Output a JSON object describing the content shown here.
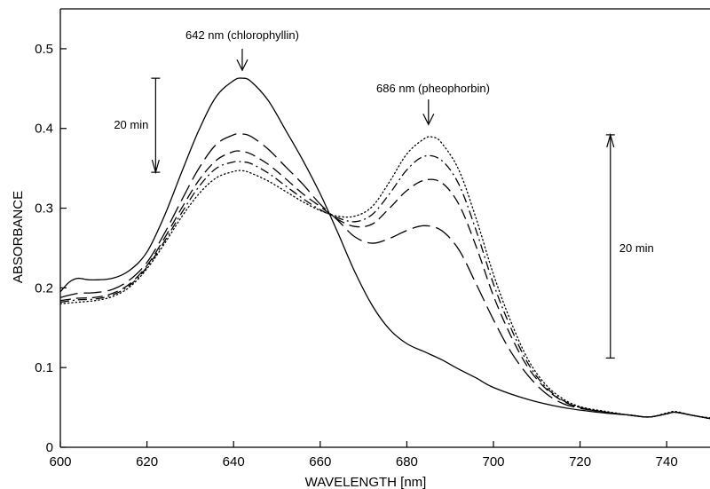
{
  "chart_data": {
    "type": "line",
    "title": "",
    "xlabel": "WAVELENGTH [nm]",
    "ylabel": "ABSORBANCE",
    "xlim": [
      600,
      750
    ],
    "ylim": [
      0,
      0.55
    ],
    "x_ticks": [
      600,
      620,
      640,
      660,
      680,
      700,
      720,
      740
    ],
    "x_tick_labels": [
      "600",
      "620",
      "640",
      "660",
      "680",
      "700",
      "720",
      "740"
    ],
    "y_ticks": [
      0,
      0.1,
      0.2,
      0.3,
      0.4,
      0.5
    ],
    "y_tick_labels": [
      "0",
      "0.1",
      "0.2",
      "0.3",
      "0.4",
      "0.5"
    ],
    "grid": false,
    "legend": "none",
    "series": [
      {
        "style": "solid",
        "points": [
          [
            600,
            0.195
          ],
          [
            602,
            0.207
          ],
          [
            604,
            0.212
          ],
          [
            607,
            0.21
          ],
          [
            612,
            0.212
          ],
          [
            616,
            0.222
          ],
          [
            620,
            0.245
          ],
          [
            624,
            0.29
          ],
          [
            628,
            0.345
          ],
          [
            632,
            0.398
          ],
          [
            636,
            0.44
          ],
          [
            640,
            0.46
          ],
          [
            642,
            0.463
          ],
          [
            644,
            0.459
          ],
          [
            648,
            0.435
          ],
          [
            652,
            0.398
          ],
          [
            656,
            0.36
          ],
          [
            660,
            0.318
          ],
          [
            664,
            0.27
          ],
          [
            668,
            0.22
          ],
          [
            672,
            0.178
          ],
          [
            676,
            0.148
          ],
          [
            680,
            0.13
          ],
          [
            684,
            0.12
          ],
          [
            688,
            0.11
          ],
          [
            692,
            0.098
          ],
          [
            696,
            0.087
          ],
          [
            700,
            0.075
          ],
          [
            708,
            0.06
          ],
          [
            716,
            0.05
          ],
          [
            724,
            0.044
          ],
          [
            732,
            0.04
          ],
          [
            736,
            0.038
          ],
          [
            740,
            0.042
          ],
          [
            742,
            0.044
          ],
          [
            746,
            0.04
          ],
          [
            750,
            0.036
          ]
        ]
      },
      {
        "style": "long-dash",
        "points": [
          [
            600,
            0.188
          ],
          [
            604,
            0.193
          ],
          [
            608,
            0.194
          ],
          [
            612,
            0.198
          ],
          [
            616,
            0.21
          ],
          [
            620,
            0.232
          ],
          [
            624,
            0.268
          ],
          [
            628,
            0.31
          ],
          [
            632,
            0.35
          ],
          [
            636,
            0.38
          ],
          [
            640,
            0.392
          ],
          [
            642,
            0.393
          ],
          [
            644,
            0.39
          ],
          [
            648,
            0.374
          ],
          [
            652,
            0.352
          ],
          [
            656,
            0.33
          ],
          [
            660,
            0.305
          ],
          [
            664,
            0.285
          ],
          [
            668,
            0.264
          ],
          [
            672,
            0.256
          ],
          [
            676,
            0.262
          ],
          [
            680,
            0.272
          ],
          [
            684,
            0.278
          ],
          [
            688,
            0.272
          ],
          [
            692,
            0.248
          ],
          [
            696,
            0.205
          ],
          [
            700,
            0.16
          ],
          [
            704,
            0.12
          ],
          [
            708,
            0.09
          ],
          [
            712,
            0.068
          ],
          [
            716,
            0.055
          ],
          [
            720,
            0.049
          ],
          [
            726,
            0.044
          ],
          [
            732,
            0.04
          ],
          [
            736,
            0.038
          ],
          [
            740,
            0.042
          ],
          [
            742,
            0.044
          ],
          [
            746,
            0.04
          ],
          [
            750,
            0.036
          ]
        ]
      },
      {
        "style": "dash",
        "points": [
          [
            600,
            0.184
          ],
          [
            604,
            0.187
          ],
          [
            608,
            0.188
          ],
          [
            612,
            0.193
          ],
          [
            616,
            0.205
          ],
          [
            620,
            0.228
          ],
          [
            624,
            0.262
          ],
          [
            628,
            0.3
          ],
          [
            632,
            0.335
          ],
          [
            636,
            0.36
          ],
          [
            640,
            0.371
          ],
          [
            642,
            0.371
          ],
          [
            644,
            0.368
          ],
          [
            648,
            0.355
          ],
          [
            652,
            0.337
          ],
          [
            656,
            0.318
          ],
          [
            660,
            0.302
          ],
          [
            664,
            0.286
          ],
          [
            668,
            0.277
          ],
          [
            672,
            0.28
          ],
          [
            676,
            0.3
          ],
          [
            680,
            0.322
          ],
          [
            684,
            0.335
          ],
          [
            688,
            0.332
          ],
          [
            692,
            0.305
          ],
          [
            696,
            0.252
          ],
          [
            700,
            0.19
          ],
          [
            704,
            0.14
          ],
          [
            708,
            0.1
          ],
          [
            712,
            0.074
          ],
          [
            716,
            0.058
          ],
          [
            720,
            0.05
          ],
          [
            726,
            0.044
          ],
          [
            732,
            0.04
          ],
          [
            736,
            0.038
          ],
          [
            740,
            0.042
          ],
          [
            742,
            0.044
          ],
          [
            746,
            0.04
          ],
          [
            750,
            0.036
          ]
        ]
      },
      {
        "style": "dash-dot",
        "points": [
          [
            600,
            0.182
          ],
          [
            604,
            0.185
          ],
          [
            608,
            0.186
          ],
          [
            612,
            0.191
          ],
          [
            616,
            0.203
          ],
          [
            620,
            0.226
          ],
          [
            624,
            0.258
          ],
          [
            628,
            0.294
          ],
          [
            632,
            0.327
          ],
          [
            636,
            0.35
          ],
          [
            640,
            0.358
          ],
          [
            642,
            0.358
          ],
          [
            644,
            0.356
          ],
          [
            648,
            0.344
          ],
          [
            652,
            0.328
          ],
          [
            656,
            0.312
          ],
          [
            660,
            0.298
          ],
          [
            664,
            0.288
          ],
          [
            668,
            0.283
          ],
          [
            672,
            0.292
          ],
          [
            676,
            0.318
          ],
          [
            680,
            0.348
          ],
          [
            684,
            0.365
          ],
          [
            688,
            0.36
          ],
          [
            692,
            0.33
          ],
          [
            696,
            0.272
          ],
          [
            700,
            0.205
          ],
          [
            704,
            0.15
          ],
          [
            708,
            0.105
          ],
          [
            712,
            0.076
          ],
          [
            716,
            0.059
          ],
          [
            720,
            0.05
          ],
          [
            726,
            0.044
          ],
          [
            732,
            0.04
          ],
          [
            736,
            0.038
          ],
          [
            740,
            0.042
          ],
          [
            742,
            0.044
          ],
          [
            746,
            0.04
          ],
          [
            750,
            0.036
          ]
        ]
      },
      {
        "style": "dotted",
        "points": [
          [
            600,
            0.18
          ],
          [
            604,
            0.182
          ],
          [
            608,
            0.184
          ],
          [
            612,
            0.189
          ],
          [
            616,
            0.201
          ],
          [
            620,
            0.224
          ],
          [
            624,
            0.255
          ],
          [
            628,
            0.289
          ],
          [
            632,
            0.318
          ],
          [
            636,
            0.338
          ],
          [
            640,
            0.346
          ],
          [
            642,
            0.347
          ],
          [
            644,
            0.344
          ],
          [
            648,
            0.334
          ],
          [
            652,
            0.321
          ],
          [
            656,
            0.308
          ],
          [
            660,
            0.297
          ],
          [
            664,
            0.29
          ],
          [
            668,
            0.29
          ],
          [
            672,
            0.302
          ],
          [
            676,
            0.333
          ],
          [
            680,
            0.368
          ],
          [
            684,
            0.387
          ],
          [
            686,
            0.389
          ],
          [
            688,
            0.382
          ],
          [
            692,
            0.348
          ],
          [
            696,
            0.287
          ],
          [
            700,
            0.217
          ],
          [
            704,
            0.158
          ],
          [
            708,
            0.11
          ],
          [
            712,
            0.079
          ],
          [
            716,
            0.061
          ],
          [
            720,
            0.051
          ],
          [
            726,
            0.045
          ],
          [
            732,
            0.04
          ],
          [
            736,
            0.038
          ],
          [
            740,
            0.043
          ],
          [
            742,
            0.045
          ],
          [
            746,
            0.04
          ],
          [
            750,
            0.037
          ]
        ]
      }
    ],
    "annotations": [
      {
        "text": "642 nm (chlorophyllin)",
        "x": 642,
        "y": 0.473
      },
      {
        "text": "686 nm (pheophorbin)",
        "x": 685,
        "y": 0.405
      },
      {
        "text": "20 min",
        "x": 622,
        "y1": 0.463,
        "y2": 0.345
      },
      {
        "text": "20 min",
        "x": 727,
        "y1": 0.112,
        "y2": 0.392
      }
    ]
  }
}
